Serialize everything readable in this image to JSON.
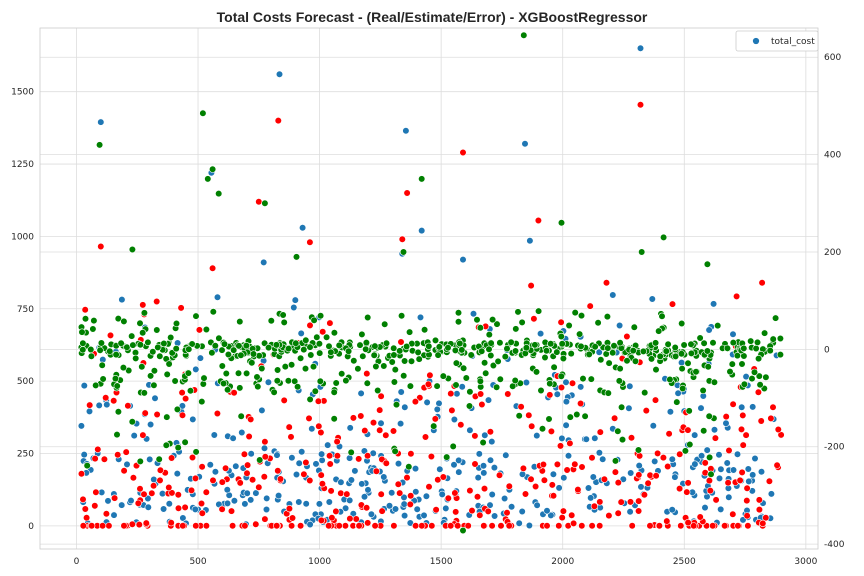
{
  "chart_data": {
    "type": "scatter",
    "title": "Total Costs Forecast - (Real/Estimate/Error) - XGBoostRegressor",
    "xlabel": "",
    "ylabel": "",
    "xlim": [
      -150,
      3050
    ],
    "ylim_left": [
      -80,
      1720
    ],
    "ylim_right": [
      -410,
      660
    ],
    "xticks": [
      0,
      500,
      1000,
      1500,
      2000,
      2500,
      3000
    ],
    "yticks_left": [
      0,
      250,
      500,
      750,
      1000,
      1250,
      1500
    ],
    "yticks_right": [
      -400,
      -200,
      0,
      200,
      400,
      600
    ],
    "grid": true,
    "legend": {
      "position": "top-right",
      "entries": [
        {
          "label": "total_cost",
          "color": "#1f77b4"
        }
      ]
    },
    "series": [
      {
        "name": "total_cost",
        "axis": "left",
        "color": "#1f77b4",
        "x": [
          100,
          555,
          835,
          930,
          1340,
          1355,
          1420,
          1590,
          1845,
          1865,
          2320,
          770,
          900,
          1415,
          580,
          2150,
          2600,
          2080,
          1700
        ],
        "values": [
          1395,
          1220,
          1560,
          1030,
          940,
          1365,
          1020,
          920,
          1320,
          985,
          1650,
          910,
          780,
          720,
          790,
          600,
          560,
          420,
          680
        ],
        "note_range": [
          0,
          800
        ]
      },
      {
        "name": "estimate",
        "axis": "left",
        "color": "#ff0000",
        "x": [
          100,
          830,
          960,
          750,
          1360,
          1340,
          1590,
          1900,
          2320,
          560,
          330,
          2180,
          2820,
          1870
        ],
        "values": [
          965,
          1400,
          980,
          1120,
          1150,
          990,
          1290,
          1055,
          1455,
          890,
          775,
          840,
          840,
          830
        ],
        "note_range": [
          0,
          800
        ]
      },
      {
        "name": "error",
        "axis": "right",
        "color": "#008000",
        "x": [
          95,
          520,
          540,
          585,
          560,
          775,
          905,
          1345,
          1420,
          1840,
          1995,
          2325,
          2415,
          2595,
          230
        ],
        "values": [
          420,
          485,
          350,
          320,
          370,
          300,
          190,
          200,
          350,
          645,
          260,
          200,
          230,
          175,
          205
        ],
        "note_range": [
          -400,
          210
        ]
      }
    ]
  }
}
